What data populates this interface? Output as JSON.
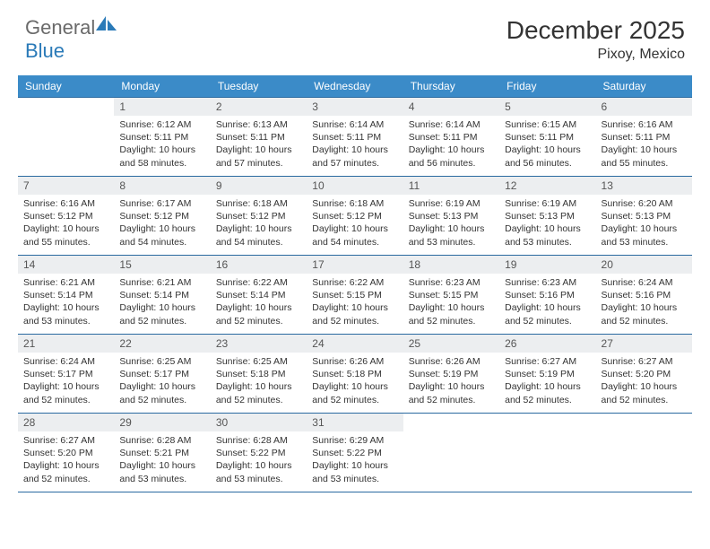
{
  "brand": {
    "part1": "General",
    "part2": "Blue"
  },
  "title": "December 2025",
  "location": "Pixoy, Mexico",
  "colors": {
    "header_bg": "#3b8bc8",
    "header_text": "#ffffff",
    "daynum_bg": "#eceef0",
    "border": "#2a6aa0",
    "logo_sail": "#2a7ab8"
  },
  "days_of_week": [
    "Sunday",
    "Monday",
    "Tuesday",
    "Wednesday",
    "Thursday",
    "Friday",
    "Saturday"
  ],
  "start_offset": 1,
  "days": [
    {
      "n": 1,
      "sunrise": "6:12 AM",
      "sunset": "5:11 PM",
      "daylight": "10 hours and 58 minutes."
    },
    {
      "n": 2,
      "sunrise": "6:13 AM",
      "sunset": "5:11 PM",
      "daylight": "10 hours and 57 minutes."
    },
    {
      "n": 3,
      "sunrise": "6:14 AM",
      "sunset": "5:11 PM",
      "daylight": "10 hours and 57 minutes."
    },
    {
      "n": 4,
      "sunrise": "6:14 AM",
      "sunset": "5:11 PM",
      "daylight": "10 hours and 56 minutes."
    },
    {
      "n": 5,
      "sunrise": "6:15 AM",
      "sunset": "5:11 PM",
      "daylight": "10 hours and 56 minutes."
    },
    {
      "n": 6,
      "sunrise": "6:16 AM",
      "sunset": "5:11 PM",
      "daylight": "10 hours and 55 minutes."
    },
    {
      "n": 7,
      "sunrise": "6:16 AM",
      "sunset": "5:12 PM",
      "daylight": "10 hours and 55 minutes."
    },
    {
      "n": 8,
      "sunrise": "6:17 AM",
      "sunset": "5:12 PM",
      "daylight": "10 hours and 54 minutes."
    },
    {
      "n": 9,
      "sunrise": "6:18 AM",
      "sunset": "5:12 PM",
      "daylight": "10 hours and 54 minutes."
    },
    {
      "n": 10,
      "sunrise": "6:18 AM",
      "sunset": "5:12 PM",
      "daylight": "10 hours and 54 minutes."
    },
    {
      "n": 11,
      "sunrise": "6:19 AM",
      "sunset": "5:13 PM",
      "daylight": "10 hours and 53 minutes."
    },
    {
      "n": 12,
      "sunrise": "6:19 AM",
      "sunset": "5:13 PM",
      "daylight": "10 hours and 53 minutes."
    },
    {
      "n": 13,
      "sunrise": "6:20 AM",
      "sunset": "5:13 PM",
      "daylight": "10 hours and 53 minutes."
    },
    {
      "n": 14,
      "sunrise": "6:21 AM",
      "sunset": "5:14 PM",
      "daylight": "10 hours and 53 minutes."
    },
    {
      "n": 15,
      "sunrise": "6:21 AM",
      "sunset": "5:14 PM",
      "daylight": "10 hours and 52 minutes."
    },
    {
      "n": 16,
      "sunrise": "6:22 AM",
      "sunset": "5:14 PM",
      "daylight": "10 hours and 52 minutes."
    },
    {
      "n": 17,
      "sunrise": "6:22 AM",
      "sunset": "5:15 PM",
      "daylight": "10 hours and 52 minutes."
    },
    {
      "n": 18,
      "sunrise": "6:23 AM",
      "sunset": "5:15 PM",
      "daylight": "10 hours and 52 minutes."
    },
    {
      "n": 19,
      "sunrise": "6:23 AM",
      "sunset": "5:16 PM",
      "daylight": "10 hours and 52 minutes."
    },
    {
      "n": 20,
      "sunrise": "6:24 AM",
      "sunset": "5:16 PM",
      "daylight": "10 hours and 52 minutes."
    },
    {
      "n": 21,
      "sunrise": "6:24 AM",
      "sunset": "5:17 PM",
      "daylight": "10 hours and 52 minutes."
    },
    {
      "n": 22,
      "sunrise": "6:25 AM",
      "sunset": "5:17 PM",
      "daylight": "10 hours and 52 minutes."
    },
    {
      "n": 23,
      "sunrise": "6:25 AM",
      "sunset": "5:18 PM",
      "daylight": "10 hours and 52 minutes."
    },
    {
      "n": 24,
      "sunrise": "6:26 AM",
      "sunset": "5:18 PM",
      "daylight": "10 hours and 52 minutes."
    },
    {
      "n": 25,
      "sunrise": "6:26 AM",
      "sunset": "5:19 PM",
      "daylight": "10 hours and 52 minutes."
    },
    {
      "n": 26,
      "sunrise": "6:27 AM",
      "sunset": "5:19 PM",
      "daylight": "10 hours and 52 minutes."
    },
    {
      "n": 27,
      "sunrise": "6:27 AM",
      "sunset": "5:20 PM",
      "daylight": "10 hours and 52 minutes."
    },
    {
      "n": 28,
      "sunrise": "6:27 AM",
      "sunset": "5:20 PM",
      "daylight": "10 hours and 52 minutes."
    },
    {
      "n": 29,
      "sunrise": "6:28 AM",
      "sunset": "5:21 PM",
      "daylight": "10 hours and 53 minutes."
    },
    {
      "n": 30,
      "sunrise": "6:28 AM",
      "sunset": "5:22 PM",
      "daylight": "10 hours and 53 minutes."
    },
    {
      "n": 31,
      "sunrise": "6:29 AM",
      "sunset": "5:22 PM",
      "daylight": "10 hours and 53 minutes."
    }
  ],
  "labels": {
    "sunrise": "Sunrise:",
    "sunset": "Sunset:",
    "daylight": "Daylight:"
  }
}
